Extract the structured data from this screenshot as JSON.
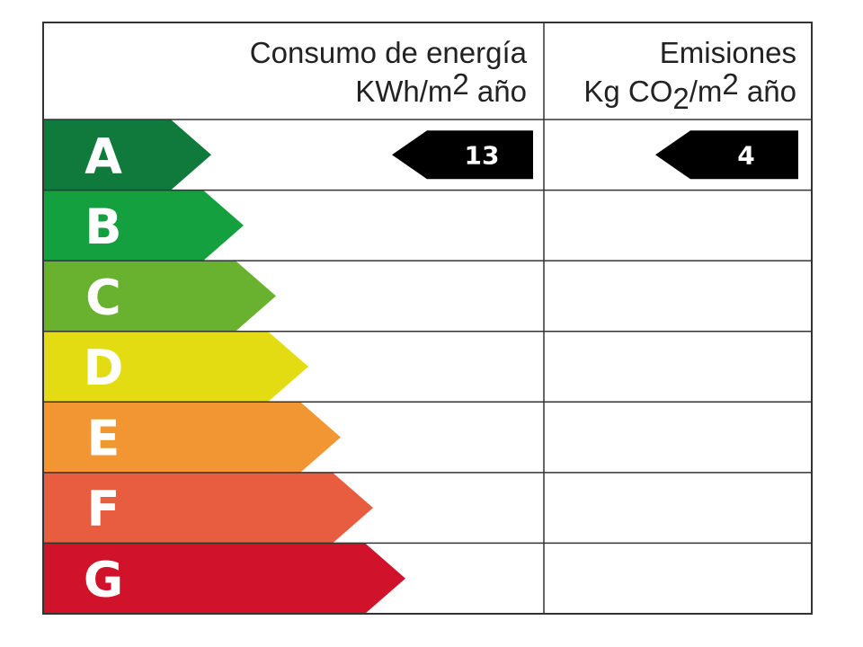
{
  "header": {
    "energy": {
      "title": "Consumo de energía",
      "unit": "KWh/m",
      "unit_sup": "2",
      "unit_end": " año"
    },
    "emissions": {
      "title": "Emisiones",
      "unit": "Kg CO",
      "unit_sub": "2",
      "unit_mid": "/m",
      "unit_sup": "2",
      "unit_end": " año"
    }
  },
  "ratings": [
    {
      "letter": "A",
      "color": "#10793c"
    },
    {
      "letter": "B",
      "color": "#14a03f"
    },
    {
      "letter": "C",
      "color": "#69b22f"
    },
    {
      "letter": "D",
      "color": "#e3dc13"
    },
    {
      "letter": "E",
      "color": "#f29633"
    },
    {
      "letter": "F",
      "color": "#e85c40"
    },
    {
      "letter": "G",
      "color": "#d0132a"
    }
  ],
  "indicators": {
    "energy": {
      "rating": "A",
      "value": 13
    },
    "emissions": {
      "rating": "A",
      "value": 4
    }
  }
}
